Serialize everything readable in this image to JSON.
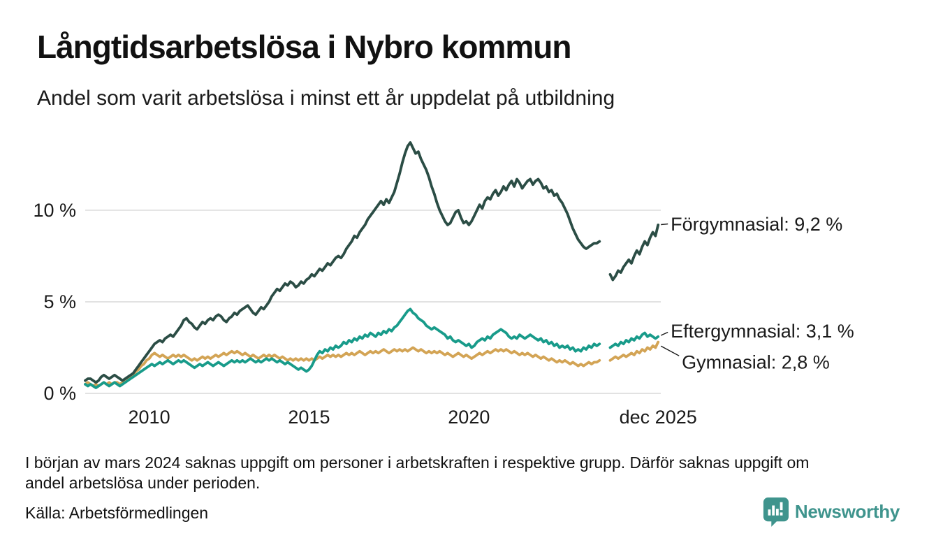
{
  "header": {
    "title": "Långtidsarbetslösa i Nybro kommun",
    "subtitle": "Andel som varit arbetslösa i minst ett år uppdelat på utbildning"
  },
  "footer": {
    "note_lines": [
      "I början av mars 2024 saknas uppgift om personer i arbetskraften i respektive grupp. Därför saknas uppgift om",
      "andel arbetslösa under perioden."
    ],
    "source": "Källa: Arbetsförmedlingen",
    "brand": "Newsworthy"
  },
  "colors": {
    "text": "#1a1a1a",
    "grid": "#e2e2e2",
    "dark_series": "#2b4d45",
    "teal_series": "#189b8a",
    "yellow_series": "#d3a455",
    "brand_teal": "#3f948d"
  },
  "chart_data": {
    "type": "line",
    "title": "Långtidsarbetslösa i Nybro kommun",
    "subtitle": "Andel som varit arbetslösa i minst ett år uppdelat på utbildning",
    "unit": "%",
    "x_start": 2008,
    "x_step": "monthly",
    "data_gap": "mars 2024 – maj 2024 (uppgift saknas)",
    "xlim": [
      2008,
      2026
    ],
    "ylim": [
      0,
      14.5
    ],
    "grid": "horizontal",
    "legend_position": "end-of-line labels, right side",
    "x_ticks": [
      {
        "value": 2010,
        "label": "2010"
      },
      {
        "value": 2015,
        "label": "2015"
      },
      {
        "value": 2020,
        "label": "2020"
      },
      {
        "value": 2025.917,
        "label": "dec 2025"
      }
    ],
    "y_ticks": [
      {
        "value": 0,
        "label": "0 %"
      },
      {
        "value": 5,
        "label": "5 %"
      },
      {
        "value": 10,
        "label": "10 %"
      }
    ],
    "series": [
      {
        "id": "forgymnasial",
        "name": "Förgymnasial",
        "end_label": "Förgymnasial: 9,2 %",
        "end_value": 9.2,
        "color": "#2b4d45",
        "label_dy": -2,
        "values": [
          0.7,
          0.8,
          0.8,
          0.7,
          0.6,
          0.7,
          0.9,
          1.0,
          0.9,
          0.8,
          0.9,
          1.0,
          0.9,
          0.8,
          0.7,
          0.8,
          0.9,
          1.0,
          1.1,
          1.3,
          1.5,
          1.7,
          1.9,
          2.1,
          2.3,
          2.5,
          2.7,
          2.8,
          2.9,
          2.8,
          3.0,
          3.1,
          3.2,
          3.1,
          3.3,
          3.5,
          3.7,
          4.0,
          4.1,
          3.9,
          3.8,
          3.6,
          3.5,
          3.7,
          3.9,
          3.8,
          4.0,
          4.1,
          4.0,
          4.2,
          4.3,
          4.2,
          4.0,
          3.9,
          4.1,
          4.2,
          4.4,
          4.3,
          4.5,
          4.6,
          4.7,
          4.8,
          4.6,
          4.4,
          4.3,
          4.5,
          4.7,
          4.6,
          4.8,
          5.0,
          5.3,
          5.5,
          5.7,
          5.6,
          5.8,
          6.0,
          5.9,
          6.1,
          6.0,
          5.8,
          5.9,
          6.1,
          6.0,
          6.2,
          6.3,
          6.5,
          6.4,
          6.6,
          6.8,
          6.7,
          6.9,
          7.1,
          7.0,
          7.2,
          7.4,
          7.5,
          7.4,
          7.6,
          7.9,
          8.1,
          8.3,
          8.6,
          8.5,
          8.8,
          9.0,
          9.2,
          9.5,
          9.7,
          9.9,
          10.1,
          10.3,
          10.5,
          10.3,
          10.6,
          10.4,
          10.7,
          11.0,
          11.5,
          12.0,
          12.6,
          13.1,
          13.5,
          13.7,
          13.4,
          13.1,
          13.2,
          12.8,
          12.5,
          12.2,
          11.8,
          11.3,
          10.9,
          10.4,
          10.0,
          9.7,
          9.4,
          9.2,
          9.3,
          9.6,
          9.9,
          10.0,
          9.6,
          9.3,
          9.4,
          9.2,
          9.4,
          9.7,
          10.0,
          10.3,
          10.1,
          10.5,
          10.7,
          10.6,
          10.9,
          11.1,
          10.8,
          11.0,
          11.3,
          11.1,
          11.4,
          11.6,
          11.3,
          11.7,
          11.5,
          11.2,
          11.4,
          11.6,
          11.7,
          11.4,
          11.6,
          11.7,
          11.5,
          11.2,
          11.3,
          11.0,
          11.1,
          10.8,
          10.9,
          10.6,
          10.4,
          10.1,
          9.8,
          9.4,
          9.0,
          8.7,
          8.4,
          8.2,
          8.0,
          7.9,
          8.0,
          8.1,
          8.2,
          8.2,
          8.3,
          null,
          null,
          null,
          6.5,
          6.2,
          6.4,
          6.7,
          6.6,
          6.9,
          7.1,
          7.3,
          7.1,
          7.5,
          7.8,
          7.6,
          8.0,
          8.3,
          8.1,
          8.5,
          8.8,
          8.6,
          9.2
        ]
      },
      {
        "id": "eftergymnasial",
        "name": "Eftergymnasial",
        "end_label": "Eftergymnasial: 3,1 %",
        "end_value": 3.1,
        "color": "#189b8a",
        "label_dy": -9,
        "values": [
          0.5,
          0.4,
          0.5,
          0.4,
          0.3,
          0.4,
          0.5,
          0.6,
          0.5,
          0.4,
          0.5,
          0.6,
          0.5,
          0.4,
          0.5,
          0.6,
          0.7,
          0.8,
          0.9,
          1.0,
          1.1,
          1.2,
          1.3,
          1.4,
          1.5,
          1.6,
          1.5,
          1.6,
          1.7,
          1.6,
          1.7,
          1.8,
          1.7,
          1.6,
          1.7,
          1.8,
          1.7,
          1.8,
          1.7,
          1.6,
          1.5,
          1.4,
          1.5,
          1.6,
          1.5,
          1.6,
          1.7,
          1.6,
          1.5,
          1.6,
          1.7,
          1.6,
          1.5,
          1.6,
          1.7,
          1.8,
          1.7,
          1.8,
          1.7,
          1.8,
          1.7,
          1.8,
          1.9,
          1.8,
          1.7,
          1.8,
          1.7,
          1.8,
          1.9,
          1.8,
          1.9,
          1.8,
          1.7,
          1.8,
          1.7,
          1.6,
          1.7,
          1.6,
          1.5,
          1.4,
          1.3,
          1.4,
          1.3,
          1.2,
          1.3,
          1.5,
          1.8,
          2.1,
          2.3,
          2.2,
          2.4,
          2.3,
          2.5,
          2.4,
          2.6,
          2.5,
          2.6,
          2.8,
          2.7,
          2.9,
          2.8,
          3.0,
          2.9,
          3.1,
          3.0,
          3.2,
          3.1,
          3.3,
          3.2,
          3.1,
          3.3,
          3.2,
          3.4,
          3.3,
          3.5,
          3.4,
          3.6,
          3.7,
          3.9,
          4.1,
          4.3,
          4.5,
          4.6,
          4.4,
          4.3,
          4.1,
          4.0,
          3.9,
          3.7,
          3.6,
          3.5,
          3.6,
          3.5,
          3.4,
          3.3,
          3.2,
          3.0,
          3.1,
          2.9,
          2.8,
          2.9,
          2.8,
          2.7,
          2.6,
          2.7,
          2.5,
          2.6,
          2.8,
          2.9,
          3.0,
          2.9,
          3.1,
          3.0,
          3.2,
          3.3,
          3.4,
          3.5,
          3.4,
          3.3,
          3.1,
          3.0,
          3.1,
          3.0,
          3.2,
          3.1,
          3.0,
          3.1,
          3.2,
          3.1,
          3.0,
          2.9,
          3.0,
          2.8,
          2.9,
          2.7,
          2.8,
          2.6,
          2.7,
          2.5,
          2.6,
          2.5,
          2.6,
          2.4,
          2.5,
          2.3,
          2.4,
          2.3,
          2.5,
          2.4,
          2.6,
          2.5,
          2.7,
          2.6,
          2.7,
          null,
          null,
          null,
          2.5,
          2.6,
          2.7,
          2.6,
          2.8,
          2.7,
          2.9,
          2.8,
          3.0,
          2.9,
          3.1,
          3.0,
          3.2,
          3.3,
          3.1,
          3.2,
          3.1,
          3.0,
          3.1
        ]
      },
      {
        "id": "gymnasial",
        "name": "Gymnasial",
        "end_label": "Gymnasial: 2,8 %",
        "end_value": 2.8,
        "color": "#d3a455",
        "label_dy": 28,
        "values": [
          0.5,
          0.6,
          0.5,
          0.4,
          0.5,
          0.4,
          0.5,
          0.6,
          0.5,
          0.6,
          0.5,
          0.6,
          0.6,
          0.5,
          0.6,
          0.7,
          0.8,
          0.9,
          1.0,
          1.2,
          1.3,
          1.5,
          1.6,
          1.8,
          1.9,
          2.1,
          2.2,
          2.1,
          2.0,
          2.1,
          2.0,
          1.9,
          2.0,
          2.1,
          2.0,
          2.1,
          2.0,
          2.1,
          2.0,
          1.9,
          1.8,
          1.9,
          1.8,
          1.9,
          2.0,
          1.9,
          2.0,
          1.9,
          2.0,
          2.1,
          2.0,
          2.1,
          2.2,
          2.1,
          2.2,
          2.3,
          2.2,
          2.3,
          2.2,
          2.1,
          2.2,
          2.1,
          2.0,
          2.1,
          2.0,
          1.9,
          2.0,
          2.1,
          2.0,
          2.1,
          2.0,
          2.1,
          2.0,
          1.9,
          2.0,
          1.9,
          1.8,
          1.9,
          1.8,
          1.9,
          1.8,
          1.9,
          1.8,
          1.9,
          1.8,
          1.9,
          1.8,
          1.9,
          2.0,
          1.9,
          2.0,
          2.1,
          2.0,
          2.1,
          2.0,
          2.1,
          2.0,
          2.1,
          2.2,
          2.1,
          2.2,
          2.1,
          2.2,
          2.3,
          2.2,
          2.1,
          2.2,
          2.3,
          2.2,
          2.3,
          2.2,
          2.3,
          2.4,
          2.3,
          2.2,
          2.3,
          2.4,
          2.3,
          2.4,
          2.3,
          2.4,
          2.3,
          2.4,
          2.5,
          2.4,
          2.3,
          2.4,
          2.3,
          2.2,
          2.3,
          2.2,
          2.3,
          2.2,
          2.3,
          2.2,
          2.1,
          2.2,
          2.1,
          2.0,
          2.1,
          2.2,
          2.1,
          2.0,
          2.1,
          2.0,
          1.9,
          2.0,
          2.1,
          2.2,
          2.1,
          2.2,
          2.3,
          2.2,
          2.3,
          2.4,
          2.3,
          2.4,
          2.3,
          2.4,
          2.3,
          2.2,
          2.3,
          2.2,
          2.1,
          2.2,
          2.1,
          2.2,
          2.1,
          2.0,
          2.1,
          2.0,
          1.9,
          2.0,
          1.9,
          1.8,
          1.9,
          1.8,
          1.7,
          1.8,
          1.7,
          1.8,
          1.7,
          1.6,
          1.7,
          1.6,
          1.5,
          1.6,
          1.5,
          1.6,
          1.7,
          1.6,
          1.7,
          1.7,
          1.8,
          null,
          null,
          null,
          1.8,
          1.9,
          2.0,
          1.9,
          2.0,
          2.1,
          2.0,
          2.1,
          2.2,
          2.1,
          2.3,
          2.2,
          2.4,
          2.3,
          2.5,
          2.4,
          2.6,
          2.5,
          2.8
        ]
      }
    ]
  }
}
